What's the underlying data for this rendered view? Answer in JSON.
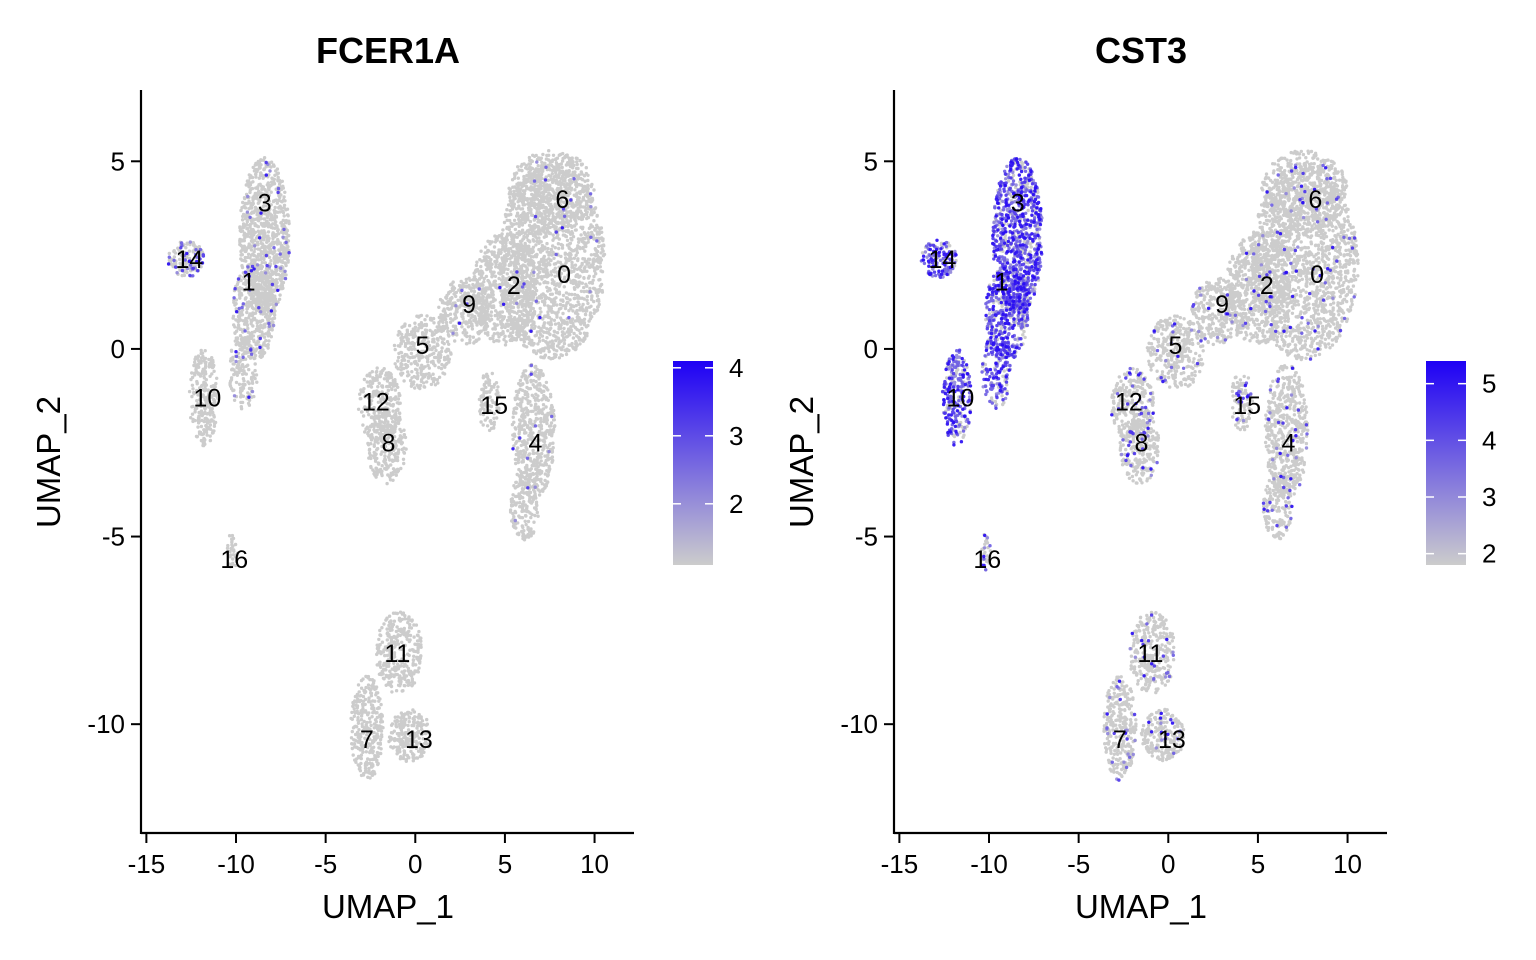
{
  "chart_data": [
    {
      "type": "scatter",
      "title": "FCER1A",
      "xlabel": "UMAP_1",
      "ylabel": "UMAP_2",
      "xlim": [
        -15.3,
        12.2
      ],
      "ylim": [
        -12.9,
        6.9
      ],
      "xticks": [
        -15,
        -10,
        -5,
        0,
        5,
        10
      ],
      "yticks": [
        5,
        0,
        -5,
        -10
      ],
      "grid": false,
      "legend": {
        "position": "right",
        "ticks": [
          4,
          3,
          2
        ],
        "min": 1.1,
        "max": 4.1,
        "low_color": "#cccccc",
        "high_color": "#1e00f5"
      },
      "clusters": [
        {
          "label": "3",
          "x": -8.4,
          "y": 3.9,
          "expr": 0.03
        },
        {
          "label": "14",
          "x": -12.6,
          "y": 2.4,
          "expr": 0.28
        },
        {
          "label": "1",
          "x": -9.3,
          "y": 1.8,
          "expr": 0.05
        },
        {
          "label": "10",
          "x": -11.6,
          "y": -1.3,
          "expr": 0.0
        },
        {
          "label": "16",
          "x": -10.1,
          "y": -5.6,
          "expr": 0.0
        },
        {
          "label": "6",
          "x": 8.2,
          "y": 4.0,
          "expr": 0.01
        },
        {
          "label": "0",
          "x": 8.3,
          "y": 2.0,
          "expr": 0.01
        },
        {
          "label": "2",
          "x": 5.5,
          "y": 1.7,
          "expr": 0.01
        },
        {
          "label": "9",
          "x": 3.0,
          "y": 1.2,
          "expr": 0.02
        },
        {
          "label": "5",
          "x": 0.4,
          "y": 0.1,
          "expr": 0.01
        },
        {
          "label": "12",
          "x": -2.2,
          "y": -1.4,
          "expr": 0.0
        },
        {
          "label": "15",
          "x": 4.4,
          "y": -1.5,
          "expr": 0.0
        },
        {
          "label": "8",
          "x": -1.5,
          "y": -2.5,
          "expr": 0.0
        },
        {
          "label": "4",
          "x": 6.7,
          "y": -2.5,
          "expr": 0.01
        },
        {
          "label": "11",
          "x": -1.0,
          "y": -8.1,
          "expr": 0.0
        },
        {
          "label": "7",
          "x": -2.7,
          "y": -10.4,
          "expr": 0.0
        },
        {
          "label": "13",
          "x": 0.2,
          "y": -10.4,
          "expr": 0.0
        }
      ]
    },
    {
      "type": "scatter",
      "title": "CST3",
      "xlabel": "UMAP_1",
      "ylabel": "UMAP_2",
      "xlim": [
        -15.3,
        12.2
      ],
      "ylim": [
        -12.9,
        6.9
      ],
      "xticks": [
        -15,
        -10,
        -5,
        0,
        5,
        10
      ],
      "yticks": [
        5,
        0,
        -5,
        -10
      ],
      "grid": false,
      "legend": {
        "position": "right",
        "ticks": [
          5,
          4,
          3,
          2
        ],
        "min": 1.8,
        "max": 5.4,
        "low_color": "#cccccc",
        "high_color": "#1e00f5"
      },
      "clusters": [
        {
          "label": "3",
          "x": -8.4,
          "y": 3.9,
          "expr": 0.75
        },
        {
          "label": "14",
          "x": -12.6,
          "y": 2.4,
          "expr": 0.8
        },
        {
          "label": "1",
          "x": -9.3,
          "y": 1.8,
          "expr": 0.72
        },
        {
          "label": "10",
          "x": -11.6,
          "y": -1.3,
          "expr": 0.7
        },
        {
          "label": "16",
          "x": -10.1,
          "y": -5.6,
          "expr": 0.3
        },
        {
          "label": "6",
          "x": 8.2,
          "y": 4.0,
          "expr": 0.03
        },
        {
          "label": "0",
          "x": 8.3,
          "y": 2.0,
          "expr": 0.03
        },
        {
          "label": "2",
          "x": 5.5,
          "y": 1.7,
          "expr": 0.03
        },
        {
          "label": "9",
          "x": 3.0,
          "y": 1.2,
          "expr": 0.05
        },
        {
          "label": "5",
          "x": 0.4,
          "y": 0.1,
          "expr": 0.06
        },
        {
          "label": "12",
          "x": -2.2,
          "y": -1.4,
          "expr": 0.12
        },
        {
          "label": "15",
          "x": 4.4,
          "y": -1.5,
          "expr": 0.15
        },
        {
          "label": "8",
          "x": -1.5,
          "y": -2.5,
          "expr": 0.12
        },
        {
          "label": "4",
          "x": 6.7,
          "y": -2.5,
          "expr": 0.05
        },
        {
          "label": "11",
          "x": -1.0,
          "y": -8.1,
          "expr": 0.06
        },
        {
          "label": "7",
          "x": -2.7,
          "y": -10.4,
          "expr": 0.08
        },
        {
          "label": "13",
          "x": 0.2,
          "y": -10.4,
          "expr": 0.06
        }
      ]
    }
  ]
}
